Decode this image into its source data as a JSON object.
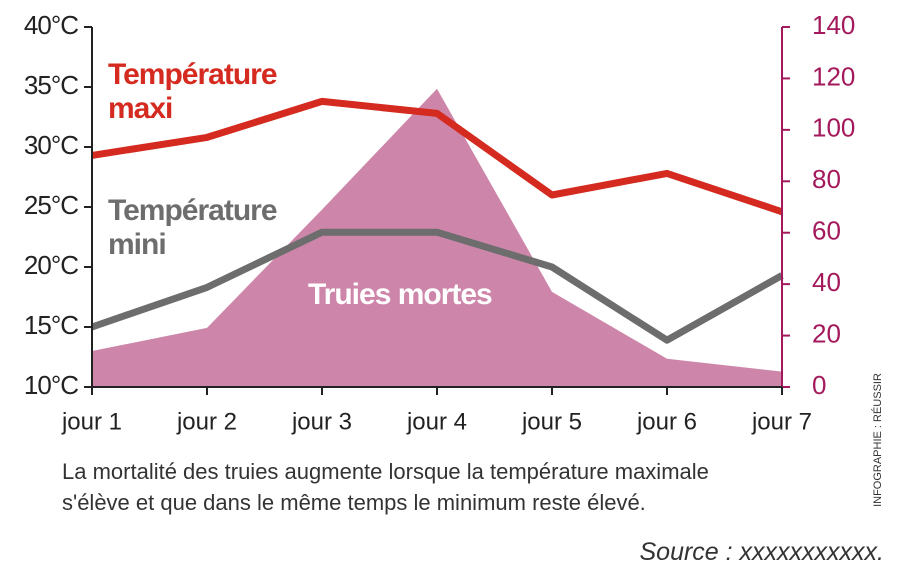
{
  "chart_data": {
    "type": "line",
    "categories": [
      "jour 1",
      "jour 2",
      "jour 3",
      "jour 4",
      "jour 5",
      "jour 6",
      "jour 7"
    ],
    "series": [
      {
        "name": "Truies mortes",
        "type": "area",
        "axis": "y2",
        "color": "#cd86a9",
        "values": [
          14,
          23,
          69,
          116,
          37,
          11,
          6
        ]
      },
      {
        "name": "Température maxi",
        "color": "#d42a1f",
        "values": [
          29.3,
          30.8,
          33.8,
          32.8,
          26,
          27.8,
          24.6
        ]
      },
      {
        "name": "Température mini",
        "color": "#6d6d6d",
        "values": [
          15,
          18.3,
          22.9,
          22.9,
          20,
          13.9,
          19.3
        ]
      }
    ],
    "ylim": [
      10,
      40
    ],
    "yticks": [
      {
        "value": 10,
        "label": "10°C"
      },
      {
        "value": 15,
        "label": "15°C"
      },
      {
        "value": 20,
        "label": "20°C"
      },
      {
        "value": 25,
        "label": "25°C"
      },
      {
        "value": 30,
        "label": "30°C"
      },
      {
        "value": 35,
        "label": "35°C"
      },
      {
        "value": 40,
        "label": "40°C"
      }
    ],
    "y2lim": [
      0,
      140
    ],
    "y2ticks": [
      0,
      20,
      40,
      60,
      80,
      100,
      120,
      140
    ],
    "y2color": "#a3195b",
    "caption": "La mortalité des truies augmente lorsque la température maximale s'élève et que dans le même temps le minimum reste élevé.",
    "source": "Source : xxxxxxxxxxx.",
    "credit": "INFOGRAPHIE : RÉUSSIR"
  }
}
